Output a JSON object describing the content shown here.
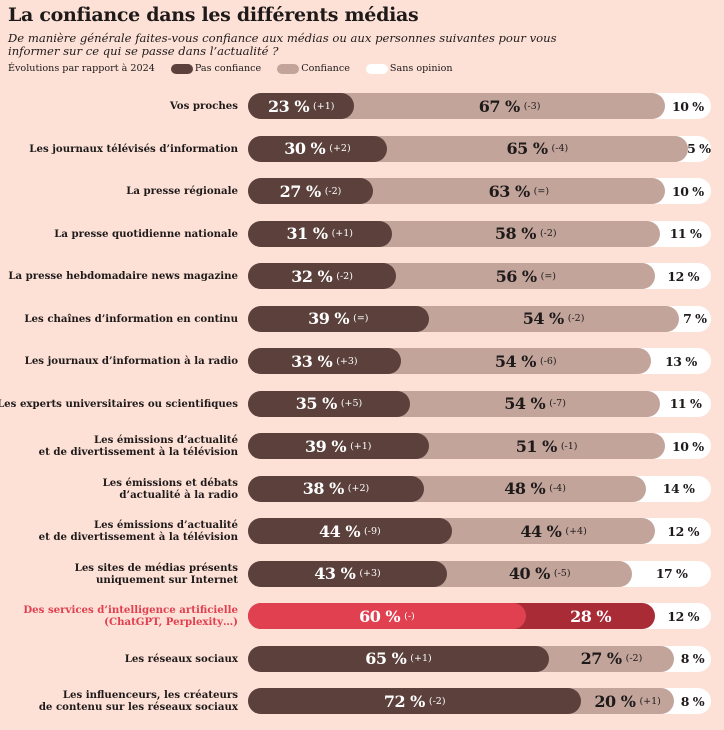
{
  "title": "La confiance dans les différents médias",
  "subtitle": "De manière générale faites-vous confiance aux médias ou aux personnes suivantes pour vous informer sur ce qui se passe dans l’actualité ?",
  "legend": {
    "note": "Évolutions par rapport à 2024",
    "items": [
      {
        "label": "Pas confiance",
        "color": "#5b403b"
      },
      {
        "label": "Confiance",
        "color": "#c2a49b"
      },
      {
        "label": "Sans opinion",
        "color": "#ffffff"
      }
    ]
  },
  "colors": {
    "background": "#fde1d7",
    "pas_confiance": "#5b403b",
    "confiance": "#c2a49b",
    "sans_opinion": "#ffffff",
    "highlight_pas_confiance": "#e0404f",
    "highlight_confiance": "#a82b36",
    "highlight_label": "#e0404f"
  },
  "chart_data": {
    "type": "bar",
    "orientation": "horizontal",
    "stacked": true,
    "title": "La confiance dans les différents médias",
    "series_names": [
      "Pas confiance",
      "Confiance",
      "Sans opinion"
    ],
    "xlim": [
      0,
      100
    ],
    "rows": [
      {
        "label": "Vos proches",
        "pas": 23,
        "pas_delta": "(+1)",
        "conf": 67,
        "conf_delta": "(-3)",
        "sans": 10
      },
      {
        "label": "Les journaux télévisés d’information",
        "pas": 30,
        "pas_delta": "(+2)",
        "conf": 65,
        "conf_delta": "(-4)",
        "sans": 5
      },
      {
        "label": "La presse régionale",
        "pas": 27,
        "pas_delta": "(-2)",
        "conf": 63,
        "conf_delta": "(=)",
        "sans": 10
      },
      {
        "label": "La presse quotidienne nationale",
        "pas": 31,
        "pas_delta": "(+1)",
        "conf": 58,
        "conf_delta": "(-2)",
        "sans": 11
      },
      {
        "label": "La presse hebdomadaire news magazine",
        "pas": 32,
        "pas_delta": "(-2)",
        "conf": 56,
        "conf_delta": "(=)",
        "sans": 12
      },
      {
        "label": "Les chaînes d’information en continu",
        "pas": 39,
        "pas_delta": "(=)",
        "conf": 54,
        "conf_delta": "(-2)",
        "sans": 7
      },
      {
        "label": "Les journaux d’information à la radio",
        "pas": 33,
        "pas_delta": "(+3)",
        "conf": 54,
        "conf_delta": "(-6)",
        "sans": 13
      },
      {
        "label": "Les experts universitaires ou scientifiques",
        "pas": 35,
        "pas_delta": "(+5)",
        "conf": 54,
        "conf_delta": "(-7)",
        "sans": 11
      },
      {
        "label": "Les émissions d’actualité\net de divertissement à la télévision",
        "pas": 39,
        "pas_delta": "(+1)",
        "conf": 51,
        "conf_delta": "(-1)",
        "sans": 10
      },
      {
        "label": "Les émissions et débats\nd’actualité à la radio",
        "pas": 38,
        "pas_delta": "(+2)",
        "conf": 48,
        "conf_delta": "(-4)",
        "sans": 14
      },
      {
        "label": "Les émissions d’actualité\net de divertissement à la télévision",
        "pas": 44,
        "pas_delta": "(-9)",
        "conf": 44,
        "conf_delta": "(+4)",
        "sans": 12
      },
      {
        "label": "Les sites de médias présents\nuniquement sur Internet",
        "pas": 43,
        "pas_delta": "(+3)",
        "conf": 40,
        "conf_delta": "(-5)",
        "sans": 17
      },
      {
        "label": "Des services d’intelligence artificielle\n(ChatGPT, Perplexity…)",
        "pas": 60,
        "pas_delta": "(-)",
        "conf": 28,
        "conf_delta": "",
        "sans": 12,
        "highlight": true
      },
      {
        "label": "Les réseaux sociaux",
        "pas": 65,
        "pas_delta": "(+1)",
        "conf": 27,
        "conf_delta": "(-2)",
        "sans": 8
      },
      {
        "label": "Les influenceurs, les créateurs\nde contenu sur les réseaux sociaux",
        "pas": 72,
        "pas_delta": "(-2)",
        "conf": 20,
        "conf_delta": "(+1)",
        "sans": 8
      }
    ]
  }
}
